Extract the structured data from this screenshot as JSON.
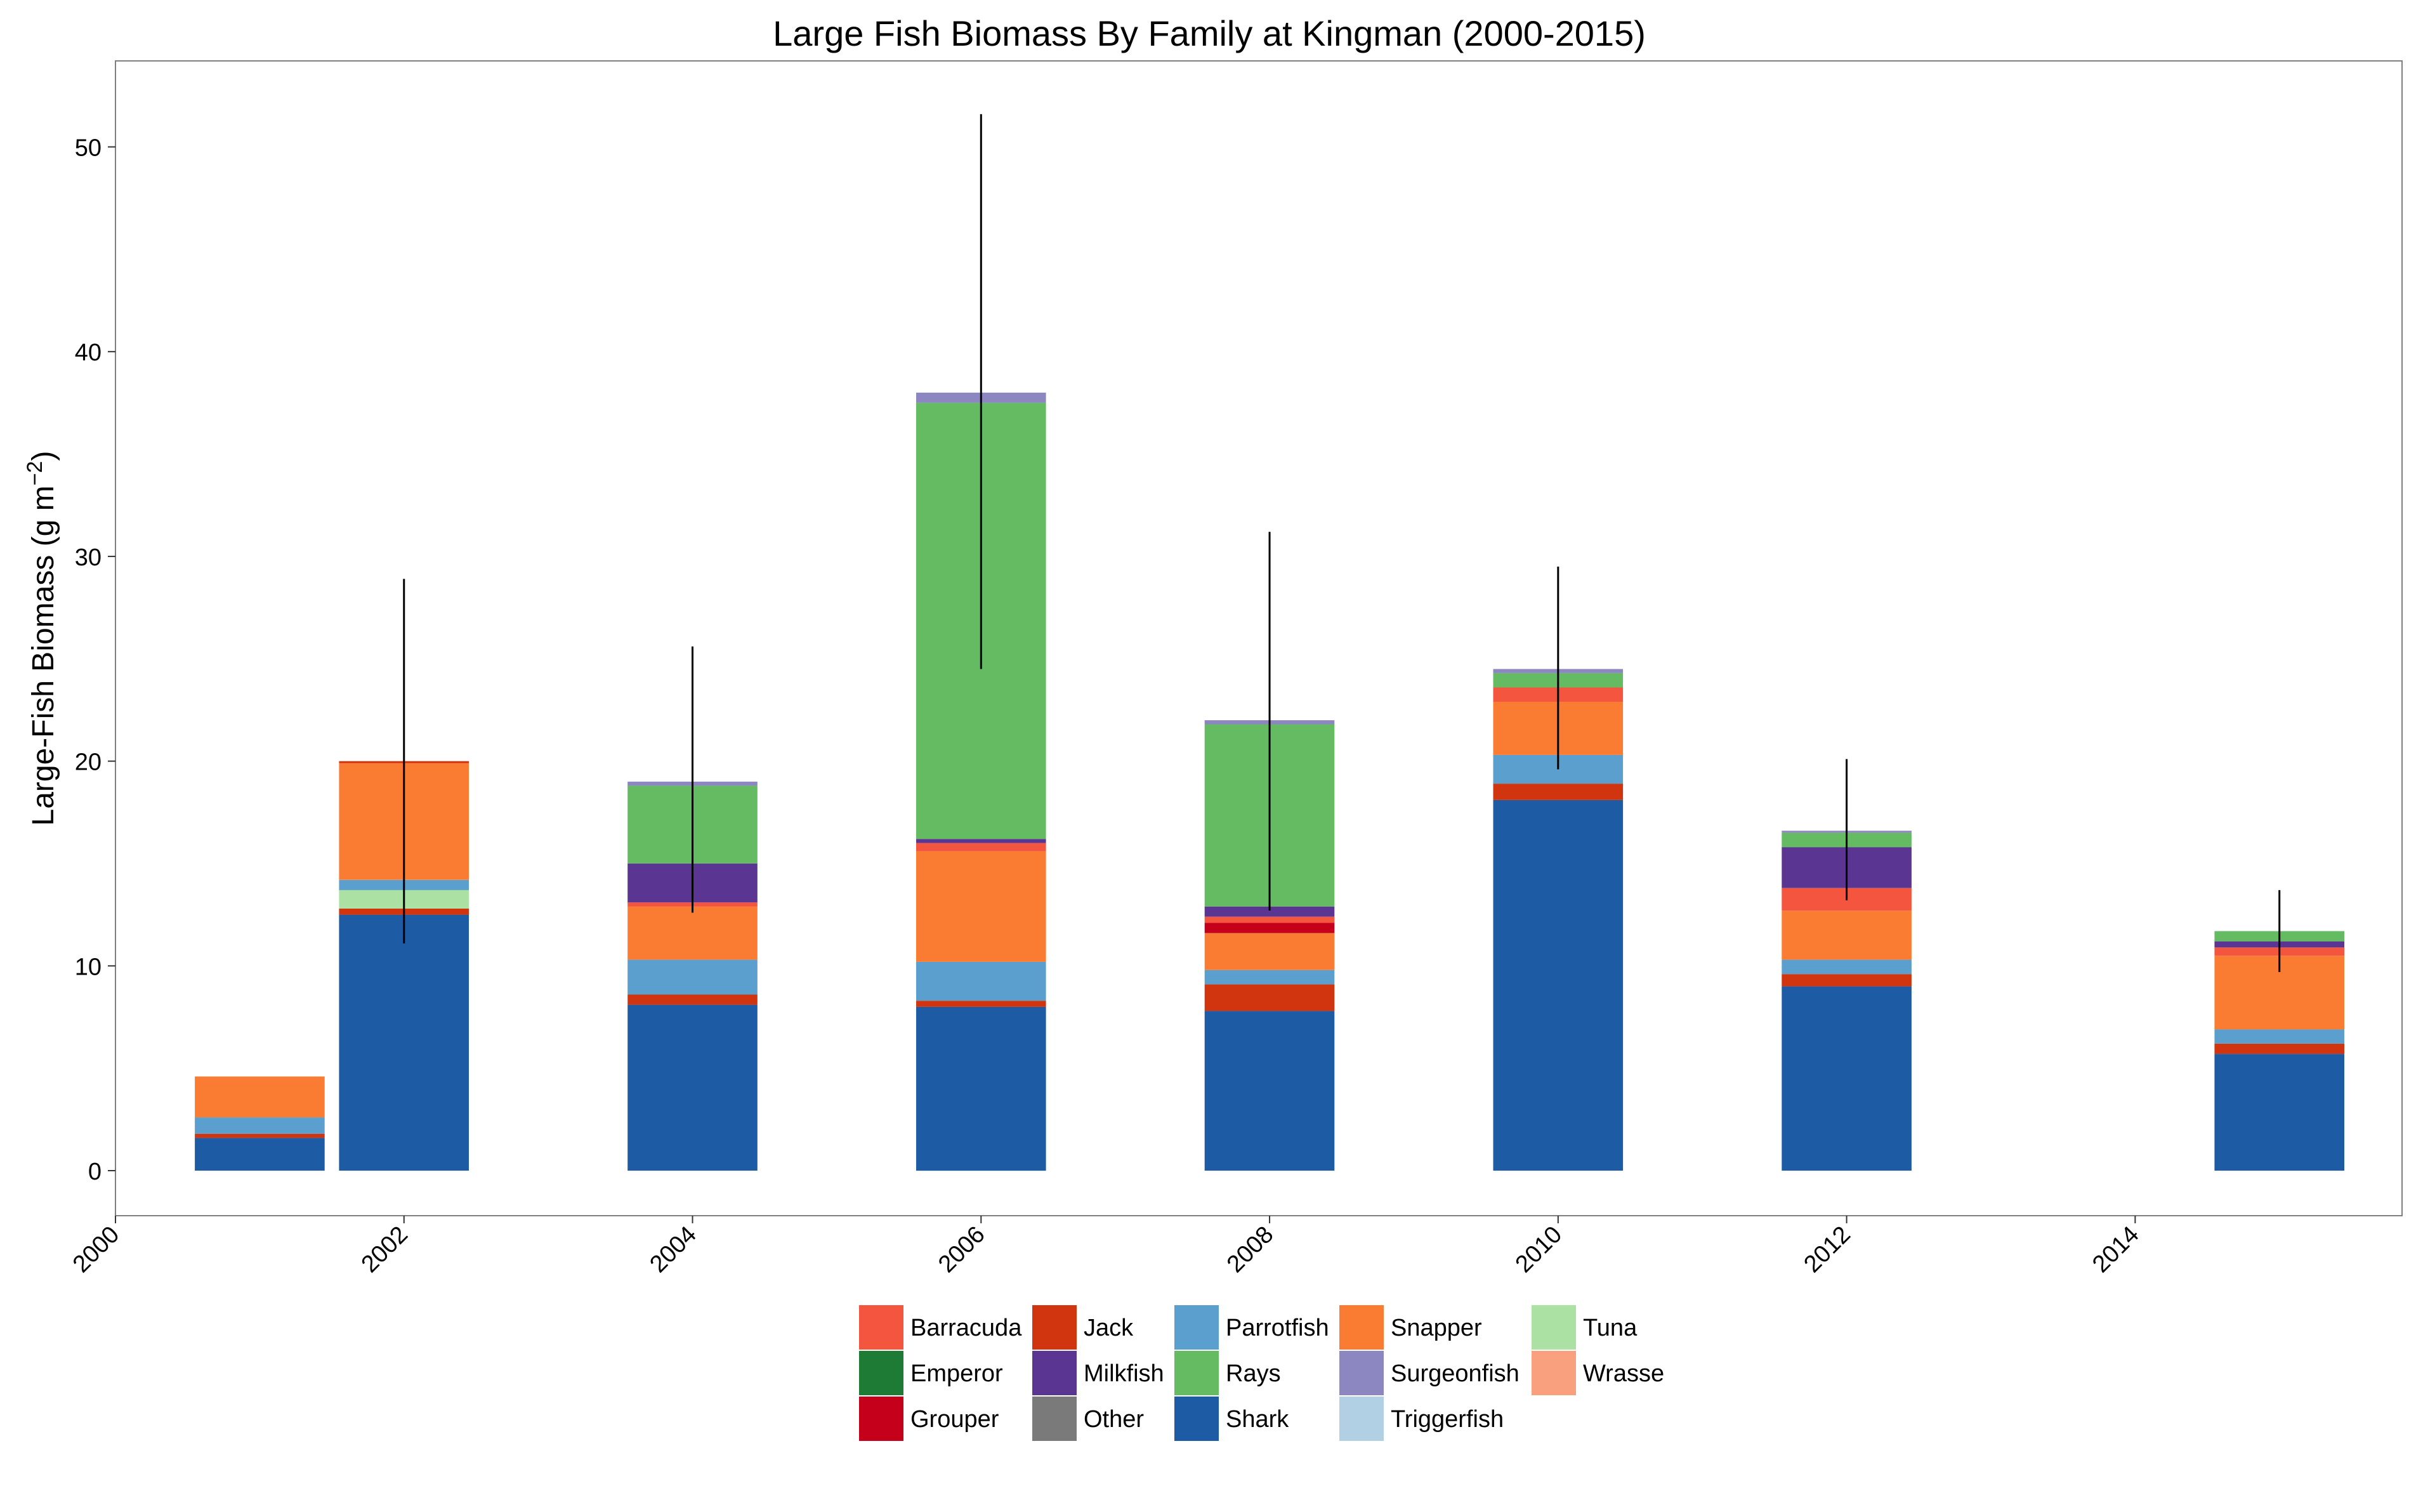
{
  "chart_data": {
    "type": "bar",
    "stacked": true,
    "title": "Large Fish Biomass By Family at Kingman (2000-2015)",
    "xlabel": "",
    "ylabel": "Large-Fish Biomass (g m",
    "ylabel_superscript": "−2",
    "ylabel_suffix": ")",
    "xlim": [
      2000,
      2015.85
    ],
    "ylim": [
      -2.2,
      54.2
    ],
    "x_ticks": [
      2000,
      2002,
      2004,
      2006,
      2008,
      2010,
      2012,
      2014
    ],
    "x_tick_labels": [
      "2000",
      "2002",
      "2004",
      "2006",
      "2008",
      "2010",
      "2012",
      "2014"
    ],
    "y_ticks": [
      0,
      10,
      20,
      30,
      40,
      50
    ],
    "y_tick_labels": [
      "0",
      "10",
      "20",
      "30",
      "40",
      "50"
    ],
    "grid": false,
    "bar_width_years": 0.9,
    "legend_position": "bottom",
    "legend_columns": 5,
    "legend_rows": 3,
    "legend": [
      {
        "name": "Barracuda",
        "color": "#F4553E"
      },
      {
        "name": "Emperor",
        "color": "#1E7B36"
      },
      {
        "name": "Grouper",
        "color": "#C4001A"
      },
      {
        "name": "Jack",
        "color": "#D1350F"
      },
      {
        "name": "Milkfish",
        "color": "#5B3592"
      },
      {
        "name": "Other",
        "color": "#7A7A7A"
      },
      {
        "name": "Parrotfish",
        "color": "#5A9FCD"
      },
      {
        "name": "Rays",
        "color": "#64BB62"
      },
      {
        "name": "Shark",
        "color": "#1D5BA5"
      },
      {
        "name": "Snapper",
        "color": "#FA7C33"
      },
      {
        "name": "Surgeonfish",
        "color": "#8D87C1"
      },
      {
        "name": "Triggerfish",
        "color": "#B2D0E4"
      },
      {
        "name": "Tuna",
        "color": "#ABE2A4"
      },
      {
        "name": "Wrasse",
        "color": "#F9A07E"
      }
    ],
    "stack_order": [
      "Shark",
      "Jack",
      "Grouper",
      "Barracuda",
      "Tuna",
      "Parrotfish",
      "Snapper",
      "Wrasse",
      "Milkfish",
      "Rays",
      "Surgeonfish",
      "Triggerfish",
      "Emperor",
      "Other"
    ],
    "bars": [
      {
        "x": 2001,
        "segments": [
          {
            "series": "Shark",
            "value": 1.6
          },
          {
            "series": "Jack",
            "value": 0.2
          },
          {
            "series": "Parrotfish",
            "value": 0.8
          },
          {
            "series": "Snapper",
            "value": 2.0
          }
        ]
      },
      {
        "x": 2002,
        "error": [
          11.1,
          28.9
        ],
        "segments": [
          {
            "series": "Shark",
            "value": 12.5
          },
          {
            "series": "Jack",
            "value": 0.3
          },
          {
            "series": "Tuna",
            "value": 0.9
          },
          {
            "series": "Parrotfish",
            "value": 0.5
          },
          {
            "series": "Snapper",
            "value": 5.7
          },
          {
            "series": "Jack",
            "value": 0.1
          }
        ]
      },
      {
        "x": 2004,
        "error": [
          12.6,
          25.6
        ],
        "segments": [
          {
            "series": "Shark",
            "value": 8.1
          },
          {
            "series": "Jack",
            "value": 0.5
          },
          {
            "series": "Parrotfish",
            "value": 1.7
          },
          {
            "series": "Snapper",
            "value": 2.6
          },
          {
            "series": "Barracuda",
            "value": 0.2
          },
          {
            "series": "Milkfish",
            "value": 1.9
          },
          {
            "series": "Rays",
            "value": 3.8
          },
          {
            "series": "Surgeonfish",
            "value": 0.2
          }
        ]
      },
      {
        "x": 2006,
        "error": [
          24.5,
          51.6
        ],
        "segments": [
          {
            "series": "Shark",
            "value": 8.0
          },
          {
            "series": "Jack",
            "value": 0.3
          },
          {
            "series": "Parrotfish",
            "value": 1.9
          },
          {
            "series": "Snapper",
            "value": 5.4
          },
          {
            "series": "Barracuda",
            "value": 0.4
          },
          {
            "series": "Milkfish",
            "value": 0.2
          },
          {
            "series": "Rays",
            "value": 21.3
          },
          {
            "series": "Surgeonfish",
            "value": 0.5
          }
        ]
      },
      {
        "x": 2008,
        "error": [
          12.7,
          31.2
        ],
        "segments": [
          {
            "series": "Shark",
            "value": 7.8
          },
          {
            "series": "Jack",
            "value": 1.3
          },
          {
            "series": "Parrotfish",
            "value": 0.7
          },
          {
            "series": "Snapper",
            "value": 1.8
          },
          {
            "series": "Grouper",
            "value": 0.5
          },
          {
            "series": "Barracuda",
            "value": 0.3
          },
          {
            "series": "Milkfish",
            "value": 0.5
          },
          {
            "series": "Rays",
            "value": 8.9
          },
          {
            "series": "Surgeonfish",
            "value": 0.2
          }
        ]
      },
      {
        "x": 2010,
        "error": [
          19.6,
          29.5
        ],
        "segments": [
          {
            "series": "Shark",
            "value": 18.1
          },
          {
            "series": "Jack",
            "value": 0.8
          },
          {
            "series": "Parrotfish",
            "value": 1.4
          },
          {
            "series": "Snapper",
            "value": 2.6
          },
          {
            "series": "Barracuda",
            "value": 0.7
          },
          {
            "series": "Rays",
            "value": 0.7
          },
          {
            "series": "Surgeonfish",
            "value": 0.2
          }
        ]
      },
      {
        "x": 2012,
        "error": [
          13.2,
          20.1
        ],
        "segments": [
          {
            "series": "Shark",
            "value": 9.0
          },
          {
            "series": "Jack",
            "value": 0.6
          },
          {
            "series": "Parrotfish",
            "value": 0.7
          },
          {
            "series": "Snapper",
            "value": 2.4
          },
          {
            "series": "Barracuda",
            "value": 1.1
          },
          {
            "series": "Milkfish",
            "value": 2.0
          },
          {
            "series": "Rays",
            "value": 0.7
          },
          {
            "series": "Surgeonfish",
            "value": 0.1
          }
        ]
      },
      {
        "x": 2015,
        "error": [
          9.7,
          13.7
        ],
        "segments": [
          {
            "series": "Shark",
            "value": 5.7
          },
          {
            "series": "Jack",
            "value": 0.5
          },
          {
            "series": "Parrotfish",
            "value": 0.7
          },
          {
            "series": "Snapper",
            "value": 3.6
          },
          {
            "series": "Barracuda",
            "value": 0.4
          },
          {
            "series": "Milkfish",
            "value": 0.3
          },
          {
            "series": "Rays",
            "value": 0.5
          }
        ]
      }
    ]
  }
}
